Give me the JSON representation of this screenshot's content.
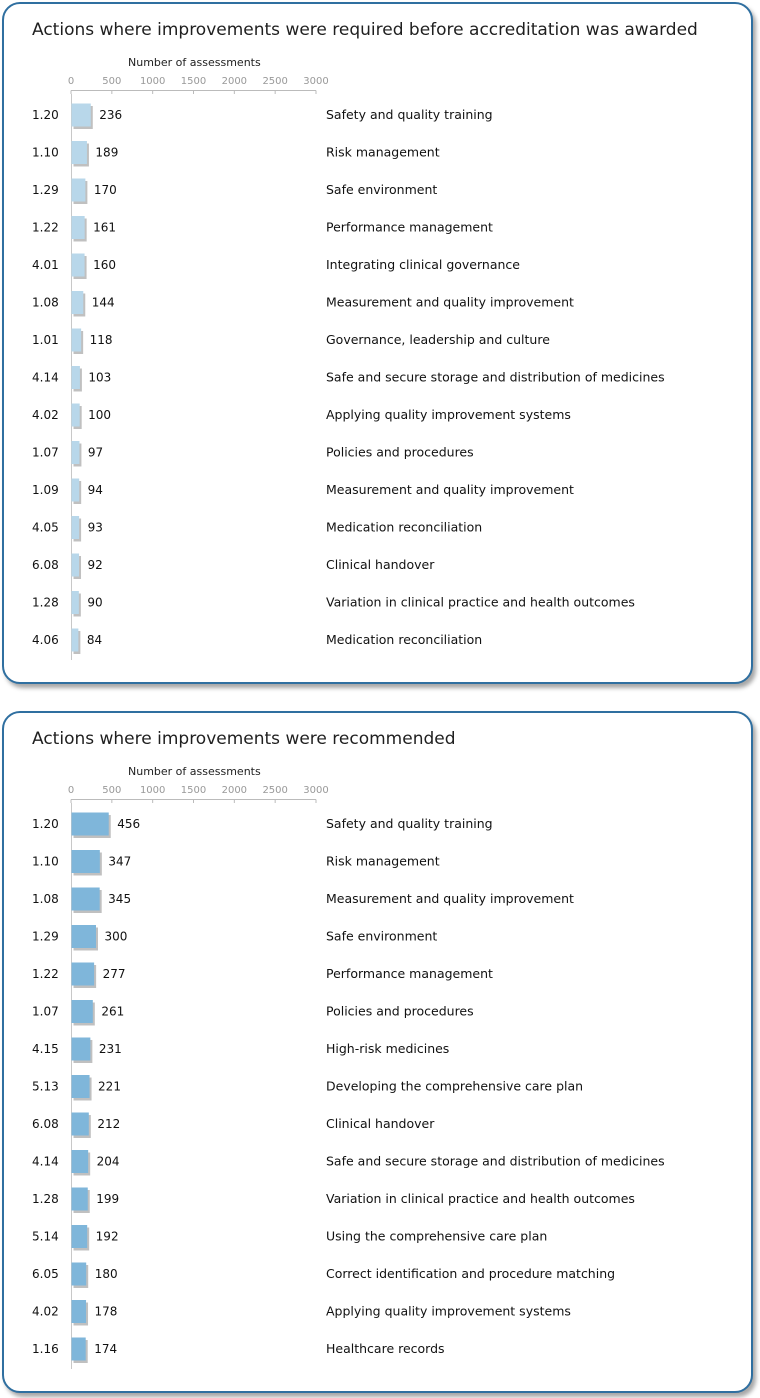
{
  "panels": [
    {
      "title": "Actions where improvements were required before accreditation was awarded",
      "color": "#b8d7ea",
      "chart_data": {
        "type": "bar",
        "orientation": "horizontal",
        "xlabel": "Number  of assessments",
        "xlim": [
          0,
          3000
        ],
        "xticks": [
          0,
          500,
          1000,
          1500,
          2000,
          2500,
          3000
        ],
        "grid": false,
        "rows": [
          {
            "code": "1.20",
            "value": 236,
            "label": "Safety and quality training"
          },
          {
            "code": "1.10",
            "value": 189,
            "label": "Risk management"
          },
          {
            "code": "1.29",
            "value": 170,
            "label": "Safe environment"
          },
          {
            "code": "1.22",
            "value": 161,
            "label": "Performance management"
          },
          {
            "code": "4.01",
            "value": 160,
            "label": "Integrating clinical governance"
          },
          {
            "code": "1.08",
            "value": 144,
            "label": "Measurement and quality improvement"
          },
          {
            "code": "1.01",
            "value": 118,
            "label": "Governance, leadership and culture"
          },
          {
            "code": "4.14",
            "value": 103,
            "label": "Safe and secure storage and distribution of medicines"
          },
          {
            "code": "4.02",
            "value": 100,
            "label": "Applying quality improvement systems"
          },
          {
            "code": "1.07",
            "value": 97,
            "label": "Policies and procedures"
          },
          {
            "code": "1.09",
            "value": 94,
            "label": "Measurement and quality improvement"
          },
          {
            "code": "4.05",
            "value": 93,
            "label": "Medication reconciliation"
          },
          {
            "code": "6.08",
            "value": 92,
            "label": "Clinical handover"
          },
          {
            "code": "1.28",
            "value": 90,
            "label": "Variation in clinical practice and health outcomes"
          },
          {
            "code": "4.06",
            "value": 84,
            "label": "Medication reconciliation"
          }
        ]
      }
    },
    {
      "title": "Actions where improvements were recommended",
      "color": "#7fb6da",
      "chart_data": {
        "type": "bar",
        "orientation": "horizontal",
        "xlabel": "Number  of assessments",
        "xlim": [
          0,
          3000
        ],
        "xticks": [
          0,
          500,
          1000,
          1500,
          2000,
          2500,
          3000
        ],
        "grid": false,
        "rows": [
          {
            "code": "1.20",
            "value": 456,
            "label": "Safety and quality training"
          },
          {
            "code": "1.10",
            "value": 347,
            "label": "Risk management"
          },
          {
            "code": "1.08",
            "value": 345,
            "label": "Measurement and quality improvement"
          },
          {
            "code": "1.29",
            "value": 300,
            "label": "Safe environment"
          },
          {
            "code": "1.22",
            "value": 277,
            "label": "Performance management"
          },
          {
            "code": "1.07",
            "value": 261,
            "label": "Policies and procedures"
          },
          {
            "code": "4.15",
            "value": 231,
            "label": "High-risk medicines"
          },
          {
            "code": "5.13",
            "value": 221,
            "label": "Developing the comprehensive care plan"
          },
          {
            "code": "6.08",
            "value": 212,
            "label": "Clinical handover"
          },
          {
            "code": "4.14",
            "value": 204,
            "label": "Safe and secure storage and distribution of medicines"
          },
          {
            "code": "1.28",
            "value": 199,
            "label": "Variation in clinical practice and health outcomes"
          },
          {
            "code": "5.14",
            "value": 192,
            "label": "Using the comprehensive care plan"
          },
          {
            "code": "6.05",
            "value": 180,
            "label": "Correct identification and procedure matching"
          },
          {
            "code": "4.02",
            "value": 178,
            "label": "Applying quality improvement systems"
          },
          {
            "code": "1.16",
            "value": 174,
            "label": "Healthcare records"
          }
        ]
      }
    }
  ]
}
